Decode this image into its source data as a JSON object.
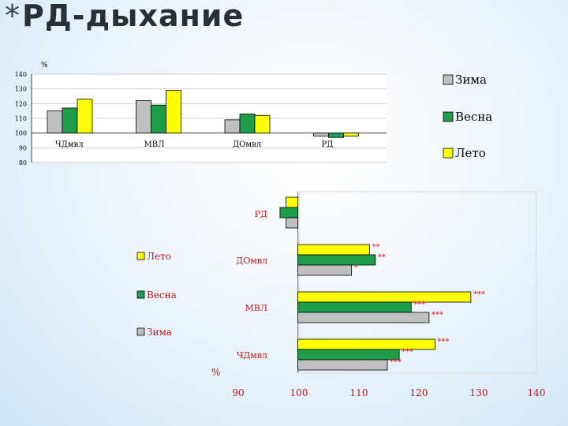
{
  "slide": {
    "star": "*",
    "title": "РД-дыхание"
  },
  "colors": {
    "Зима": "#c0c0c0",
    "Весна": "#1f9e4a",
    "Лето": "#ffff00",
    "sig": "#e0161b"
  },
  "chart_data": [
    {
      "type": "bar",
      "unit_label": "%",
      "categories": [
        "ЧДмвл",
        "МВЛ",
        "ДОмвл",
        "РД"
      ],
      "series": [
        {
          "name": "Зима",
          "values": [
            115,
            122,
            109,
            98
          ]
        },
        {
          "name": "Весна",
          "values": [
            117,
            119,
            113,
            97
          ]
        },
        {
          "name": "Лето",
          "values": [
            123,
            129,
            112,
            98
          ]
        }
      ],
      "ylim": [
        80,
        140
      ],
      "yticks": [
        "140",
        "130",
        "120",
        "110",
        "100",
        "90",
        "80"
      ],
      "legend": [
        "Зима",
        "Весна",
        "Лето"
      ],
      "legend_position": "right",
      "grid": true
    },
    {
      "type": "bar",
      "orientation": "horizontal",
      "unit_label": "%",
      "categories": [
        "РД",
        "ДОмвл",
        "МВЛ",
        "ЧДмвл"
      ],
      "series": [
        {
          "name": "Лето",
          "values": [
            98,
            112,
            129,
            123
          ]
        },
        {
          "name": "Весна",
          "values": [
            97,
            113,
            119,
            117
          ]
        },
        {
          "name": "Зима",
          "values": [
            98,
            109,
            122,
            115
          ]
        }
      ],
      "annotations": {
        "Лето": [
          "",
          "**",
          "***",
          "***"
        ],
        "Весна": [
          "",
          "**",
          "***",
          "***"
        ],
        "Зима": [
          "",
          "*",
          "***",
          "***"
        ]
      },
      "xlim": [
        90,
        140
      ],
      "xticks": [
        "90",
        "100",
        "110",
        "120",
        "130",
        "140"
      ],
      "legend": [
        "Лето",
        "Весна",
        "Зима"
      ],
      "legend_position": "left"
    }
  ]
}
